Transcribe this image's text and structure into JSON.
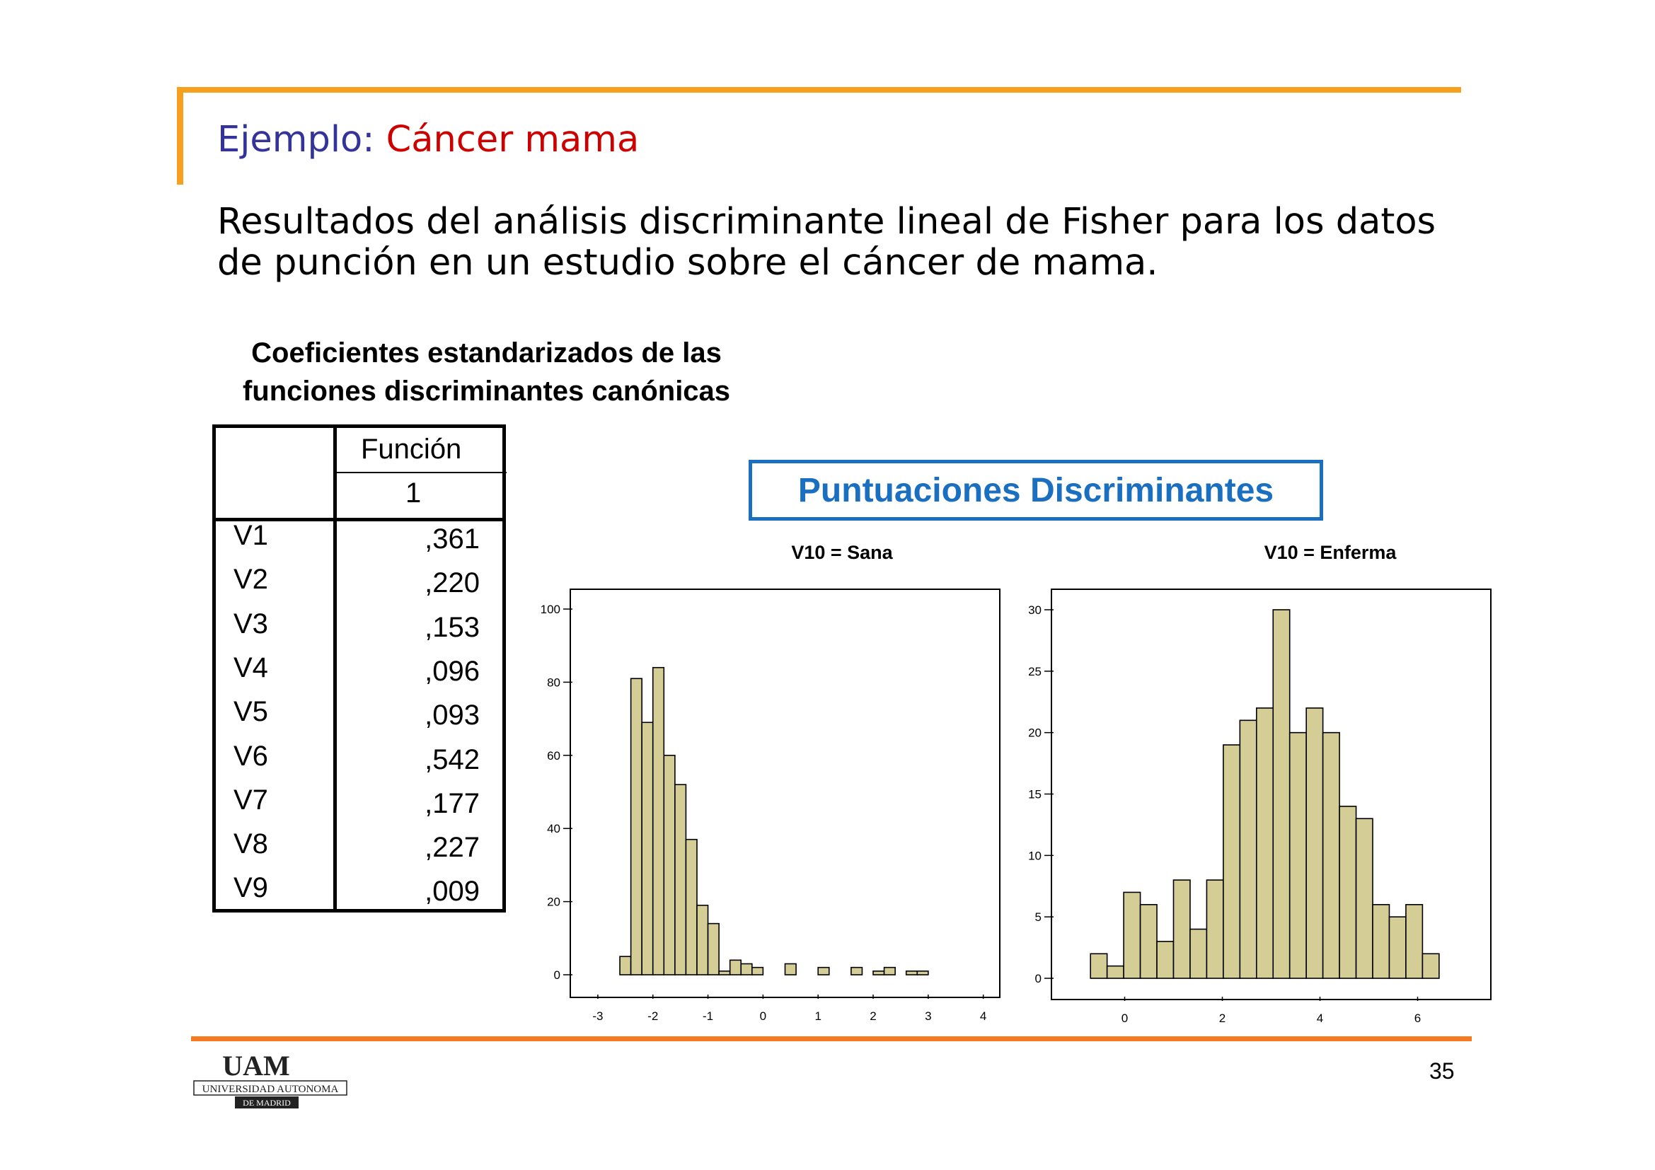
{
  "slide": {
    "title_part1": "Ejemplo: ",
    "title_part2": "Cáncer mama",
    "subtitle_line1": "Resultados del análisis discriminante lineal de Fisher para los datos",
    "subtitle_line2": "de punción en un estudio sobre el cáncer de mama.",
    "page_number": "35"
  },
  "table": {
    "title_line1": "Coeficientes estandarizados de las",
    "title_line2": "funciones discriminantes canónicas",
    "header_top": "Función",
    "header_sub": "1",
    "rows": [
      {
        "label": "V1",
        "value": ",361"
      },
      {
        "label": "V2",
        "value": ",220"
      },
      {
        "label": "V3",
        "value": ",153"
      },
      {
        "label": "V4",
        "value": ",096"
      },
      {
        "label": "V5",
        "value": ",093"
      },
      {
        "label": "V6",
        "value": ",542"
      },
      {
        "label": "V7",
        "value": ",177"
      },
      {
        "label": "V8",
        "value": ",227"
      },
      {
        "label": "V9",
        "value": ",009"
      }
    ]
  },
  "box_title": "Puntuaciones Discriminantes",
  "logo": {
    "letters": "UAM",
    "line1": "UNIVERSIDAD AUTONOMA",
    "line2": "DE MADRID"
  },
  "colors": {
    "accent_orange": "#f5a01e",
    "bottom_orange": "#f47b20",
    "title_blue": "#333399",
    "title_red": "#cc0000",
    "box_blue": "#1b6fc0",
    "bar_fill": "#d4cd96"
  },
  "chart_data": [
    {
      "type": "bar",
      "title": "V10 = Sana",
      "xlim": [
        -3.5,
        4.3
      ],
      "ylim": [
        0,
        105
      ],
      "xticks": [
        -3,
        -2,
        -1,
        0,
        1,
        2,
        3,
        4
      ],
      "yticks": [
        0,
        20,
        40,
        60,
        80,
        100
      ],
      "bin_width": 0.2,
      "bins_start": [
        -2.6,
        -2.4,
        -2.2,
        -2.0,
        -1.8,
        -1.6,
        -1.4,
        -1.2,
        -1.0,
        -0.8,
        -0.6,
        -0.4,
        -0.2,
        0.4,
        1.0,
        1.6,
        2.0,
        2.2,
        2.6,
        2.8
      ],
      "values": [
        5,
        81,
        69,
        84,
        60,
        52,
        37,
        19,
        14,
        1,
        4,
        3,
        2,
        3,
        2,
        2,
        1,
        2,
        1,
        1
      ]
    },
    {
      "type": "bar",
      "title": "V10 = Enferma",
      "xlim": [
        -1.5,
        7.5
      ],
      "ylim": [
        0,
        31.5
      ],
      "xticks": [
        0,
        2,
        4,
        6
      ],
      "yticks": [
        0,
        5,
        10,
        15,
        20,
        25,
        30
      ],
      "bin_width": 0.34,
      "bins_start": [
        -0.7,
        -0.36,
        -0.02,
        0.32,
        0.66,
        1.0,
        1.34,
        1.68,
        2.02,
        2.36,
        2.7,
        3.04,
        3.38,
        3.72,
        4.06,
        4.4,
        4.74,
        5.08,
        5.42,
        5.76,
        6.1
      ],
      "values": [
        2,
        1,
        7,
        6,
        3,
        8,
        4,
        8,
        19,
        21,
        22,
        30,
        20,
        22,
        20,
        14,
        13,
        6,
        5,
        6,
        2
      ]
    }
  ]
}
